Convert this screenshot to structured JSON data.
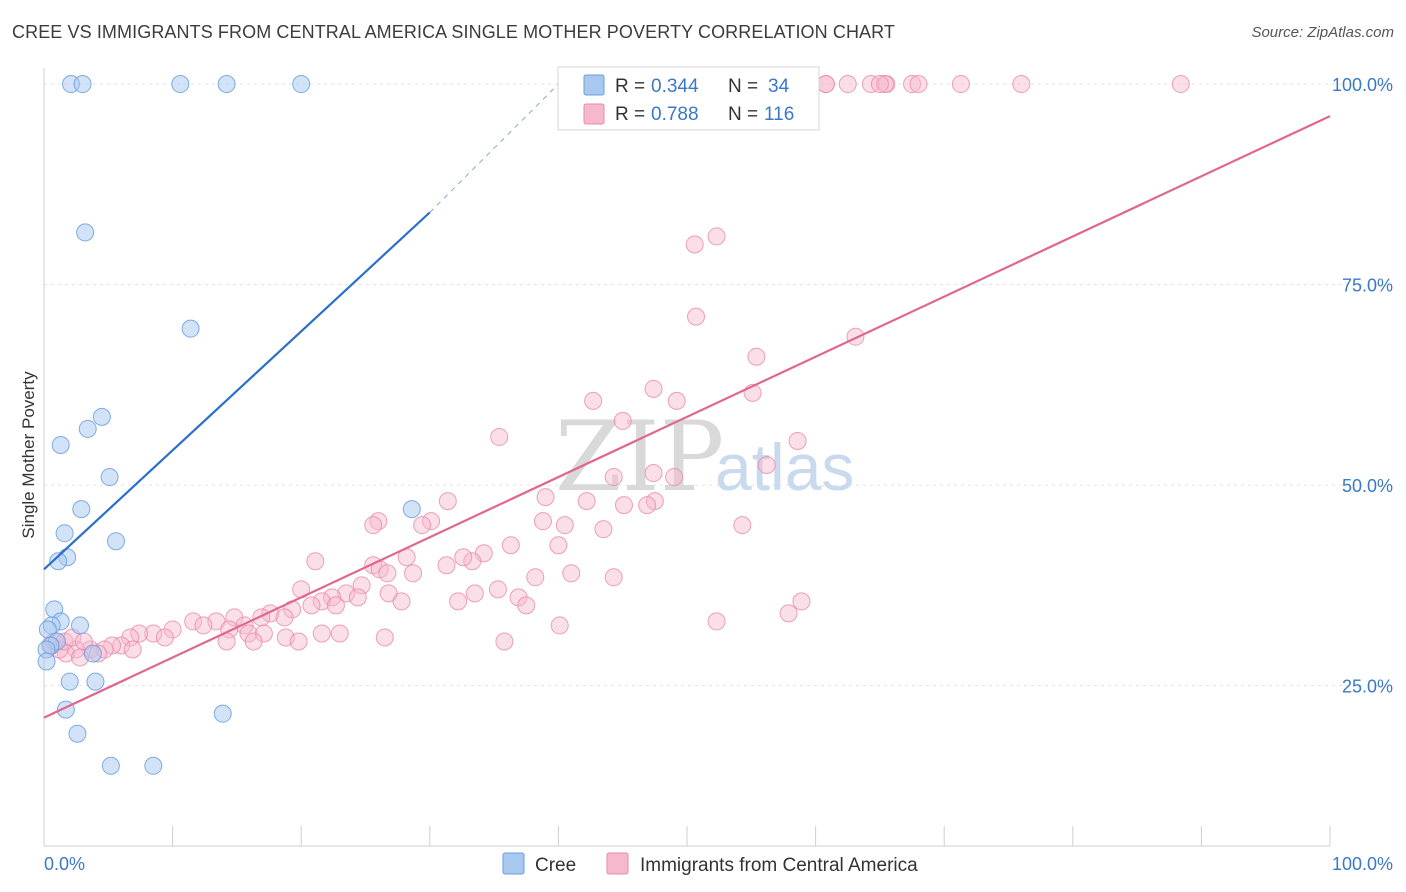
{
  "title": "CREE VS IMMIGRANTS FROM CENTRAL AMERICA SINGLE MOTHER POVERTY CORRELATION CHART",
  "source": "Source: ZipAtlas.com",
  "watermark": {
    "zip": "ZIP",
    "atlas": "atlas"
  },
  "colors": {
    "cree_fill": "#a8c8f0",
    "cree_stroke": "#6a9fdc",
    "cree_line": "#2a6fcb",
    "imm_fill": "#f6b8cc",
    "imm_stroke": "#e98aaa",
    "imm_line": "#e0668f",
    "tick": "#3a78c9",
    "grid": "#dde3ea"
  },
  "legend": {
    "rows": [
      {
        "r_label": "R = ",
        "r_value": "0.344",
        "n_label": "N = ",
        "n_value": "34",
        "series": "cree"
      },
      {
        "r_label": "R = ",
        "r_value": "0.788",
        "n_label": "N = ",
        "n_value": "116",
        "series": "imm"
      }
    ]
  },
  "chart_data": {
    "type": "scatter",
    "title": "CREE VS IMMIGRANTS FROM CENTRAL AMERICA SINGLE MOTHER POVERTY CORRELATION CHART",
    "xlabel": "",
    "ylabel": "Single Mother Poverty",
    "xlim": [
      0,
      100
    ],
    "ylim": [
      5,
      102
    ],
    "x_tick_labels": [
      "0.0%",
      "100.0%"
    ],
    "y_ticks": [
      25,
      50,
      75,
      100
    ],
    "y_tick_labels": [
      "25.0%",
      "50.0%",
      "75.0%",
      "100.0%"
    ],
    "grid": true,
    "legend_position": "top-center",
    "series": [
      {
        "name": "Cree",
        "r": 0.344,
        "n": 34,
        "trend": {
          "x": [
            0,
            30
          ],
          "y": [
            39.5,
            84
          ],
          "dashed_extension_to": [
            40,
            100
          ]
        },
        "points": [
          [
            2.1,
            100
          ],
          [
            3.0,
            100
          ],
          [
            10.6,
            100
          ],
          [
            14.2,
            100
          ],
          [
            20.0,
            100
          ],
          [
            3.2,
            81.5
          ],
          [
            11.4,
            69.5
          ],
          [
            4.5,
            58.5
          ],
          [
            3.4,
            57
          ],
          [
            1.3,
            55
          ],
          [
            5.1,
            51
          ],
          [
            2.9,
            47
          ],
          [
            1.6,
            44
          ],
          [
            5.6,
            43
          ],
          [
            1.8,
            41
          ],
          [
            1.1,
            40.5
          ],
          [
            28.6,
            47
          ],
          [
            0.8,
            34.5
          ],
          [
            1.3,
            33
          ],
          [
            2.8,
            32.5
          ],
          [
            0.6,
            32.5
          ],
          [
            0.3,
            32
          ],
          [
            1.0,
            30.5
          ],
          [
            0.5,
            30
          ],
          [
            0.2,
            29.5
          ],
          [
            3.8,
            29
          ],
          [
            4.0,
            25.5
          ],
          [
            2.0,
            25.5
          ],
          [
            1.7,
            22
          ],
          [
            13.9,
            21.5
          ],
          [
            2.6,
            19
          ],
          [
            5.2,
            15
          ],
          [
            8.5,
            15
          ],
          [
            0.2,
            28
          ]
        ]
      },
      {
        "name": "Immigrants from Central America",
        "r": 0.788,
        "n": 116,
        "trend": {
          "x": [
            0,
            100
          ],
          "y": [
            21,
            96
          ]
        },
        "points": [
          [
            60.8,
            100
          ],
          [
            60.8,
            100
          ],
          [
            62.5,
            100
          ],
          [
            64.3,
            100
          ],
          [
            65.5,
            100
          ],
          [
            67.5,
            100
          ],
          [
            68.0,
            100
          ],
          [
            71.3,
            100
          ],
          [
            76.0,
            100
          ],
          [
            88.4,
            100
          ],
          [
            65.4,
            100
          ],
          [
            65.0,
            100
          ],
          [
            50.6,
            80
          ],
          [
            52.3,
            81
          ],
          [
            50.7,
            71
          ],
          [
            63.1,
            68.5
          ],
          [
            55.4,
            66
          ],
          [
            47.4,
            62
          ],
          [
            55.1,
            61.5
          ],
          [
            49.2,
            60.5
          ],
          [
            42.7,
            60.5
          ],
          [
            45.0,
            58
          ],
          [
            58.6,
            55.5
          ],
          [
            35.4,
            56
          ],
          [
            56.2,
            52.5
          ],
          [
            47.4,
            51.5
          ],
          [
            44.3,
            51
          ],
          [
            49.0,
            51
          ],
          [
            39.0,
            48.5
          ],
          [
            42.2,
            48
          ],
          [
            47.5,
            48
          ],
          [
            46.9,
            47.5
          ],
          [
            45.1,
            47.5
          ],
          [
            31.4,
            48
          ],
          [
            30.1,
            45.5
          ],
          [
            29.4,
            45
          ],
          [
            26.0,
            45.5
          ],
          [
            25.6,
            45
          ],
          [
            40.5,
            45
          ],
          [
            38.8,
            45.5
          ],
          [
            43.5,
            44.5
          ],
          [
            54.3,
            45
          ],
          [
            40.0,
            42.5
          ],
          [
            36.3,
            42.5
          ],
          [
            34.2,
            41.5
          ],
          [
            33.3,
            40.5
          ],
          [
            32.6,
            41
          ],
          [
            28.2,
            41
          ],
          [
            25.6,
            40
          ],
          [
            31.3,
            40
          ],
          [
            26.1,
            39.5
          ],
          [
            26.7,
            39
          ],
          [
            28.7,
            39
          ],
          [
            21.1,
            40.5
          ],
          [
            41.0,
            39
          ],
          [
            35.3,
            37
          ],
          [
            33.5,
            36.5
          ],
          [
            38.2,
            38.5
          ],
          [
            36.9,
            36
          ],
          [
            44.3,
            38.5
          ],
          [
            24.7,
            37.5
          ],
          [
            20.0,
            37
          ],
          [
            23.5,
            36.5
          ],
          [
            22.4,
            36
          ],
          [
            26.8,
            36.5
          ],
          [
            24.4,
            36
          ],
          [
            21.6,
            35.5
          ],
          [
            27.8,
            35.5
          ],
          [
            37.5,
            35
          ],
          [
            32.2,
            35.5
          ],
          [
            20.8,
            35
          ],
          [
            17.6,
            34
          ],
          [
            19.3,
            34.5
          ],
          [
            22.7,
            35
          ],
          [
            58.9,
            35.5
          ],
          [
            57.9,
            34
          ],
          [
            52.3,
            33
          ],
          [
            40.1,
            32.5
          ],
          [
            18.7,
            33.5
          ],
          [
            16.9,
            33.5
          ],
          [
            14.8,
            33.5
          ],
          [
            13.4,
            33
          ],
          [
            11.6,
            33
          ],
          [
            12.4,
            32.5
          ],
          [
            14.4,
            32
          ],
          [
            15.6,
            32.5
          ],
          [
            10.0,
            32
          ],
          [
            8.5,
            31.5
          ],
          [
            9.4,
            31
          ],
          [
            7.4,
            31.5
          ],
          [
            6.7,
            31
          ],
          [
            15.9,
            31.5
          ],
          [
            17.1,
            31.5
          ],
          [
            21.6,
            31.5
          ],
          [
            23.0,
            31.5
          ],
          [
            26.5,
            31
          ],
          [
            35.8,
            30.5
          ],
          [
            18.8,
            31
          ],
          [
            19.8,
            30.5
          ],
          [
            14.2,
            30.5
          ],
          [
            6.0,
            30
          ],
          [
            5.3,
            30
          ],
          [
            4.7,
            29.5
          ],
          [
            3.6,
            29.5
          ],
          [
            2.5,
            29.5
          ],
          [
            1.7,
            29
          ],
          [
            1.2,
            29.5
          ],
          [
            0.6,
            30
          ],
          [
            0.8,
            30.5
          ],
          [
            1.6,
            30.5
          ],
          [
            2.2,
            31
          ],
          [
            3.1,
            30.5
          ],
          [
            4.2,
            29
          ],
          [
            6.9,
            29.5
          ],
          [
            16.3,
            30.5
          ],
          [
            2.8,
            28.5
          ]
        ]
      }
    ]
  },
  "bottom_legend": [
    {
      "label": "Cree",
      "series": "cree"
    },
    {
      "label": "Immigrants from Central America",
      "series": "imm"
    }
  ]
}
